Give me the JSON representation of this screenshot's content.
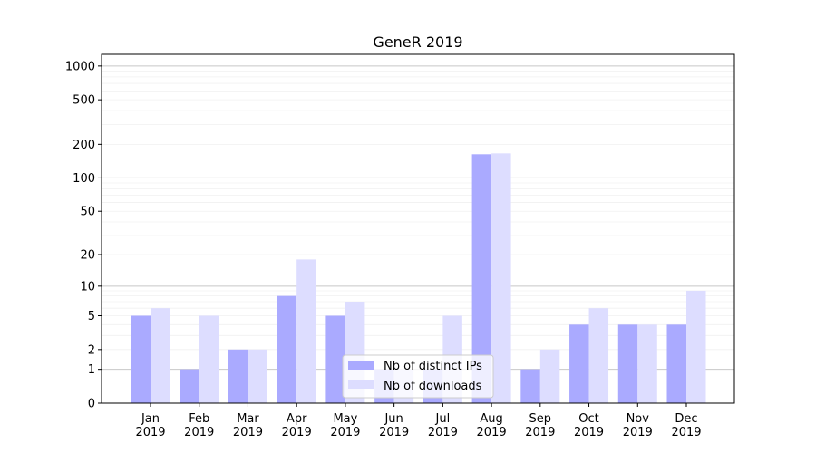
{
  "chart_data": {
    "type": "bar",
    "title": "GeneR 2019",
    "xlabel": "",
    "ylabel": "",
    "yscale": "log10(1+y)",
    "ylim": [
      0,
      1270
    ],
    "categories": [
      "Jan\n2019",
      "Feb\n2019",
      "Mar\n2019",
      "Apr\n2019",
      "May\n2019",
      "Jun\n2019",
      "Jul\n2019",
      "Aug\n2019",
      "Sep\n2019",
      "Oct\n2019",
      "Nov\n2019",
      "Dec\n2019"
    ],
    "yticks": [
      0,
      1,
      2,
      5,
      10,
      20,
      50,
      100,
      200,
      500,
      1000
    ],
    "series": [
      {
        "name": "Nb of distinct IPs",
        "color": "#aaaaff",
        "values": [
          5,
          1,
          2,
          8,
          5,
          1,
          1,
          163,
          1,
          4,
          4,
          4
        ]
      },
      {
        "name": "Nb of downloads",
        "color": "#ddddff",
        "values": [
          6,
          5,
          2,
          18,
          7,
          1,
          5,
          166,
          2,
          6,
          4,
          9
        ]
      }
    ],
    "legend": "lower-center",
    "grid": true
  }
}
